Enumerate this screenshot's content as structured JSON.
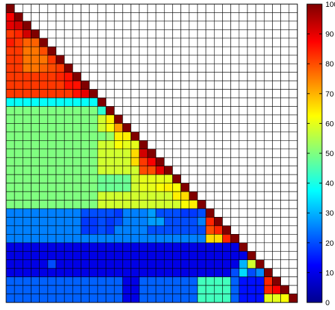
{
  "chart_data": {
    "type": "heatmap",
    "shape": "lower-triangular",
    "size": 35,
    "title": "",
    "xlabel": "",
    "ylabel": "",
    "grid": true,
    "colormap": "jet",
    "colorbar": {
      "placement": "right",
      "range": [
        0,
        100
      ],
      "ticks": [
        "0",
        "10",
        "20",
        "30",
        "40",
        "50",
        "60",
        "70",
        "80",
        "90",
        "100"
      ]
    },
    "blocks": [
      {
        "rows": [
          0,
          10
        ],
        "cols": [
          0,
          10
        ],
        "value": 82
      },
      {
        "rows": [
          11,
          23
        ],
        "cols": [
          0,
          10
        ],
        "value": 50
      },
      {
        "rows": [
          11,
          23
        ],
        "cols": [
          11,
          23
        ],
        "value": 58
      },
      {
        "rows": [
          24,
          27
        ],
        "cols": [
          0,
          27
        ],
        "value": 25
      },
      {
        "rows": [
          28,
          31
        ],
        "cols": [
          0,
          31
        ],
        "value": 10
      },
      {
        "rows": [
          32,
          34
        ],
        "cols": [
          0,
          34
        ],
        "value": 22
      }
    ],
    "cells": [
      {
        "r": 1,
        "c": 0,
        "v": 88
      },
      {
        "r": 2,
        "c": 0,
        "v": 90
      },
      {
        "r": 2,
        "c": 1,
        "v": 92
      },
      {
        "r": 3,
        "c": 0,
        "v": 82
      },
      {
        "r": 3,
        "c": 1,
        "v": 84
      },
      {
        "r": 3,
        "c": 2,
        "v": 92
      },
      {
        "r": 4,
        "c": 0,
        "v": 85
      },
      {
        "r": 4,
        "c": 2,
        "v": 78
      },
      {
        "r": 4,
        "c": 3,
        "v": 78
      },
      {
        "r": 5,
        "c": 2,
        "v": 76
      },
      {
        "r": 5,
        "c": 3,
        "v": 76
      },
      {
        "r": 5,
        "c": 4,
        "v": 80
      },
      {
        "r": 6,
        "c": 2,
        "v": 76
      },
      {
        "r": 6,
        "c": 3,
        "v": 76
      },
      {
        "r": 6,
        "c": 4,
        "v": 76
      },
      {
        "r": 6,
        "c": 5,
        "v": 82
      },
      {
        "r": 7,
        "c": 2,
        "v": 76
      },
      {
        "r": 7,
        "c": 3,
        "v": 76
      },
      {
        "r": 7,
        "c": 4,
        "v": 78
      },
      {
        "r": 7,
        "c": 5,
        "v": 80
      },
      {
        "r": 8,
        "c": 6,
        "v": 84
      },
      {
        "r": 8,
        "c": 7,
        "v": 86
      },
      {
        "r": 9,
        "c": 7,
        "v": 86
      },
      {
        "r": 9,
        "c": 8,
        "v": 86
      },
      {
        "r": 10,
        "c": 8,
        "v": 86
      },
      {
        "r": 10,
        "c": 9,
        "v": 90
      },
      {
        "r": 11,
        "c": 0,
        "v": 38
      },
      {
        "r": 11,
        "c": 1,
        "v": 38
      },
      {
        "r": 11,
        "c": 2,
        "v": 38
      },
      {
        "r": 11,
        "c": 3,
        "v": 38
      },
      {
        "r": 11,
        "c": 4,
        "v": 38
      },
      {
        "r": 11,
        "c": 5,
        "v": 38
      },
      {
        "r": 11,
        "c": 6,
        "v": 38
      },
      {
        "r": 11,
        "c": 7,
        "v": 38
      },
      {
        "r": 11,
        "c": 8,
        "v": 38
      },
      {
        "r": 11,
        "c": 9,
        "v": 38
      },
      {
        "r": 11,
        "c": 10,
        "v": 38
      },
      {
        "r": 12,
        "c": 11,
        "v": 42
      },
      {
        "r": 13,
        "c": 11,
        "v": 58
      },
      {
        "r": 13,
        "c": 12,
        "v": 64
      },
      {
        "r": 14,
        "c": 12,
        "v": 62
      },
      {
        "r": 14,
        "c": 13,
        "v": 72
      },
      {
        "r": 15,
        "c": 11,
        "v": 50
      },
      {
        "r": 15,
        "c": 12,
        "v": 52
      },
      {
        "r": 15,
        "c": 13,
        "v": 64
      },
      {
        "r": 15,
        "c": 14,
        "v": 64
      },
      {
        "r": 16,
        "c": 13,
        "v": 62
      },
      {
        "r": 16,
        "c": 14,
        "v": 60
      },
      {
        "r": 16,
        "c": 15,
        "v": 60
      },
      {
        "r": 17,
        "c": 15,
        "v": 66
      },
      {
        "r": 17,
        "c": 16,
        "v": 92
      },
      {
        "r": 18,
        "c": 15,
        "v": 66
      },
      {
        "r": 18,
        "c": 16,
        "v": 82
      },
      {
        "r": 18,
        "c": 17,
        "v": 88
      },
      {
        "r": 19,
        "c": 16,
        "v": 80
      },
      {
        "r": 19,
        "c": 17,
        "v": 80
      },
      {
        "r": 19,
        "c": 18,
        "v": 90
      },
      {
        "r": 20,
        "c": 11,
        "v": 48
      },
      {
        "r": 20,
        "c": 12,
        "v": 48
      },
      {
        "r": 20,
        "c": 13,
        "v": 48
      },
      {
        "r": 20,
        "c": 14,
        "v": 48
      },
      {
        "r": 20,
        "c": 15,
        "v": 58
      },
      {
        "r": 20,
        "c": 16,
        "v": 60
      },
      {
        "r": 20,
        "c": 17,
        "v": 60
      },
      {
        "r": 20,
        "c": 18,
        "v": 60
      },
      {
        "r": 20,
        "c": 19,
        "v": 60
      },
      {
        "r": 21,
        "c": 11,
        "v": 48
      },
      {
        "r": 21,
        "c": 12,
        "v": 48
      },
      {
        "r": 21,
        "c": 13,
        "v": 48
      },
      {
        "r": 21,
        "c": 14,
        "v": 48
      },
      {
        "r": 21,
        "c": 15,
        "v": 58
      },
      {
        "r": 21,
        "c": 16,
        "v": 60
      },
      {
        "r": 21,
        "c": 17,
        "v": 60
      },
      {
        "r": 21,
        "c": 18,
        "v": 62
      },
      {
        "r": 21,
        "c": 19,
        "v": 64
      },
      {
        "r": 21,
        "c": 20,
        "v": 62
      },
      {
        "r": 22,
        "c": 20,
        "v": 64
      },
      {
        "r": 22,
        "c": 21,
        "v": 66
      },
      {
        "r": 23,
        "c": 21,
        "v": 62
      },
      {
        "r": 23,
        "c": 22,
        "v": 64
      },
      {
        "r": 24,
        "c": 9,
        "v": 20
      },
      {
        "r": 24,
        "c": 10,
        "v": 20
      },
      {
        "r": 24,
        "c": 11,
        "v": 20
      },
      {
        "r": 24,
        "c": 12,
        "v": 20
      },
      {
        "r": 24,
        "c": 13,
        "v": 18
      },
      {
        "r": 24,
        "c": 17,
        "v": 28
      },
      {
        "r": 24,
        "c": 18,
        "v": 20
      },
      {
        "r": 24,
        "c": 19,
        "v": 20
      },
      {
        "r": 24,
        "c": 20,
        "v": 20
      },
      {
        "r": 24,
        "c": 21,
        "v": 18
      },
      {
        "r": 24,
        "c": 22,
        "v": 18
      },
      {
        "r": 24,
        "c": 23,
        "v": 20
      },
      {
        "r": 25,
        "c": 9,
        "v": 18
      },
      {
        "r": 25,
        "c": 10,
        "v": 18
      },
      {
        "r": 25,
        "c": 11,
        "v": 20
      },
      {
        "r": 25,
        "c": 12,
        "v": 18
      },
      {
        "r": 25,
        "c": 13,
        "v": 20
      },
      {
        "r": 25,
        "c": 17,
        "v": 28
      },
      {
        "r": 25,
        "c": 18,
        "v": 28
      },
      {
        "r": 25,
        "c": 19,
        "v": 20
      },
      {
        "r": 25,
        "c": 20,
        "v": 20
      },
      {
        "r": 25,
        "c": 21,
        "v": 20
      },
      {
        "r": 25,
        "c": 22,
        "v": 20
      },
      {
        "r": 25,
        "c": 24,
        "v": 84
      },
      {
        "r": 26,
        "c": 9,
        "v": 18
      },
      {
        "r": 26,
        "c": 10,
        "v": 18
      },
      {
        "r": 26,
        "c": 11,
        "v": 20
      },
      {
        "r": 26,
        "c": 12,
        "v": 18
      },
      {
        "r": 26,
        "c": 17,
        "v": 20
      },
      {
        "r": 26,
        "c": 18,
        "v": 20
      },
      {
        "r": 26,
        "c": 19,
        "v": 20
      },
      {
        "r": 26,
        "c": 20,
        "v": 20
      },
      {
        "r": 26,
        "c": 21,
        "v": 20
      },
      {
        "r": 26,
        "c": 22,
        "v": 20
      },
      {
        "r": 26,
        "c": 23,
        "v": 20
      },
      {
        "r": 26,
        "c": 24,
        "v": 80
      },
      {
        "r": 26,
        "c": 25,
        "v": 84
      },
      {
        "r": 27,
        "c": 24,
        "v": 66
      },
      {
        "r": 27,
        "c": 25,
        "v": 66
      },
      {
        "r": 27,
        "c": 26,
        "v": 84
      },
      {
        "r": 30,
        "c": 5,
        "v": 20
      },
      {
        "r": 30,
        "c": 28,
        "v": 30
      },
      {
        "r": 30,
        "c": 29,
        "v": 58
      },
      {
        "r": 31,
        "c": 27,
        "v": 20
      },
      {
        "r": 31,
        "c": 28,
        "v": 34
      },
      {
        "r": 31,
        "c": 29,
        "v": 20
      },
      {
        "r": 31,
        "c": 30,
        "v": 26
      },
      {
        "r": 32,
        "c": 14,
        "v": 10
      },
      {
        "r": 32,
        "c": 15,
        "v": 10
      },
      {
        "r": 32,
        "c": 23,
        "v": 44
      },
      {
        "r": 32,
        "c": 24,
        "v": 44
      },
      {
        "r": 32,
        "c": 25,
        "v": 44
      },
      {
        "r": 32,
        "c": 26,
        "v": 44
      },
      {
        "r": 32,
        "c": 28,
        "v": 14
      },
      {
        "r": 32,
        "c": 29,
        "v": 14
      },
      {
        "r": 32,
        "c": 30,
        "v": 14
      },
      {
        "r": 32,
        "c": 31,
        "v": 84
      },
      {
        "r": 33,
        "c": 14,
        "v": 10
      },
      {
        "r": 33,
        "c": 15,
        "v": 10
      },
      {
        "r": 33,
        "c": 23,
        "v": 44
      },
      {
        "r": 33,
        "c": 24,
        "v": 44
      },
      {
        "r": 33,
        "c": 25,
        "v": 44
      },
      {
        "r": 33,
        "c": 26,
        "v": 44
      },
      {
        "r": 33,
        "c": 28,
        "v": 14
      },
      {
        "r": 33,
        "c": 29,
        "v": 14
      },
      {
        "r": 33,
        "c": 30,
        "v": 14
      },
      {
        "r": 33,
        "c": 31,
        "v": 84
      },
      {
        "r": 33,
        "c": 32,
        "v": 88
      },
      {
        "r": 34,
        "c": 14,
        "v": 10
      },
      {
        "r": 34,
        "c": 15,
        "v": 10
      },
      {
        "r": 34,
        "c": 23,
        "v": 44
      },
      {
        "r": 34,
        "c": 24,
        "v": 44
      },
      {
        "r": 34,
        "c": 25,
        "v": 44
      },
      {
        "r": 34,
        "c": 26,
        "v": 44
      },
      {
        "r": 34,
        "c": 28,
        "v": 14
      },
      {
        "r": 34,
        "c": 29,
        "v": 14
      },
      {
        "r": 34,
        "c": 30,
        "v": 14
      },
      {
        "r": 34,
        "c": 31,
        "v": 60
      },
      {
        "r": 34,
        "c": 32,
        "v": 60
      },
      {
        "r": 34,
        "c": 33,
        "v": 62
      }
    ],
    "diagonal_value": 100
  }
}
